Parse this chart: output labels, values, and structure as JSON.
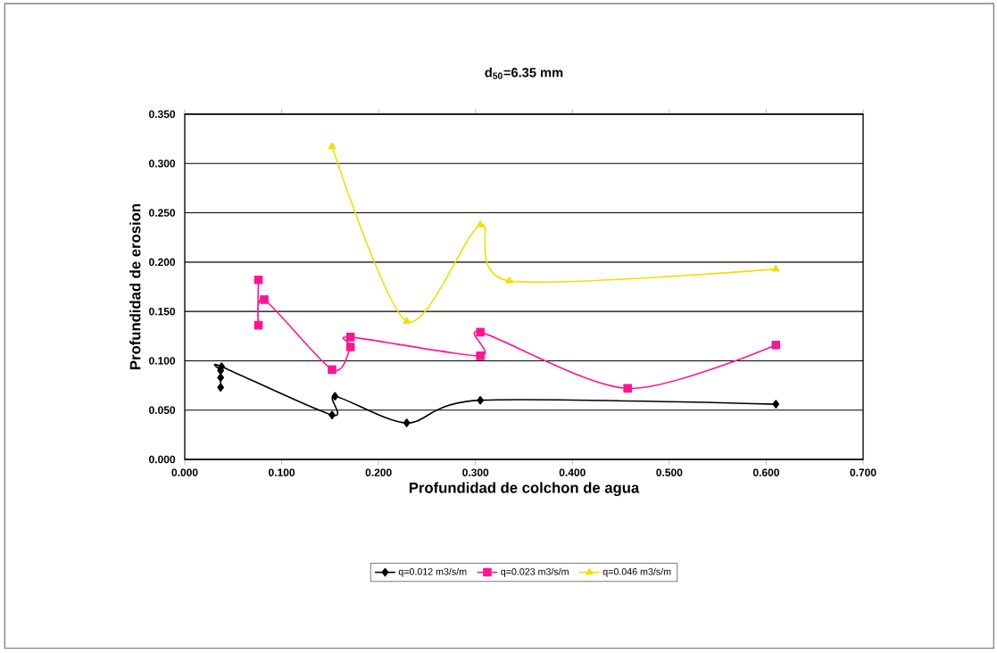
{
  "chart_data": {
    "type": "line",
    "title": "d$_{50}$=6.35 mm",
    "xlabel": "Profundidad de colchon de agua",
    "ylabel": "Profundidad de erosion",
    "xlim": [
      0,
      0.7
    ],
    "ylim": [
      0,
      0.35
    ],
    "xticks": [
      {
        "value": 0,
        "label": "0.000"
      },
      {
        "value": 0.1,
        "label": "0.100"
      },
      {
        "value": 0.2,
        "label": "0.200"
      },
      {
        "value": 0.3,
        "label": "0.300"
      },
      {
        "value": 0.4,
        "label": "0.400"
      },
      {
        "value": 0.5,
        "label": "0.500"
      },
      {
        "value": 0.6,
        "label": "0.600"
      },
      {
        "value": 0.7,
        "label": "0.700"
      }
    ],
    "yticks": [
      {
        "value": 0,
        "label": "0.000"
      },
      {
        "value": 0.05,
        "label": "0.050"
      },
      {
        "value": 0.1,
        "label": "0.100"
      },
      {
        "value": 0.15,
        "label": "0.150"
      },
      {
        "value": 0.2,
        "label": "0.200"
      },
      {
        "value": 0.25,
        "label": "0.250"
      },
      {
        "value": 0.3,
        "label": "0.300"
      },
      {
        "value": 0.35,
        "label": "0.350"
      }
    ],
    "grid": "y",
    "legend": "bottom",
    "series": [
      {
        "name": "q=0.012 m3/s/m",
        "color": "#000000",
        "marker": "diamond",
        "x": [
          0.037,
          0.037,
          0.037,
          0.038,
          0.152,
          0.155,
          0.229,
          0.305,
          0.61
        ],
        "values": [
          0.073,
          0.083,
          0.09,
          0.094,
          0.045,
          0.064,
          0.037,
          0.06,
          0.056
        ]
      },
      {
        "name": "q=0.023 m3/s/m",
        "color": "#ff1493",
        "marker": "square",
        "x": [
          0.076,
          0.076,
          0.082,
          0.152,
          0.171,
          0.171,
          0.305,
          0.305,
          0.457,
          0.61
        ],
        "values": [
          0.182,
          0.136,
          0.162,
          0.091,
          0.114,
          0.124,
          0.105,
          0.129,
          0.072,
          0.116
        ]
      },
      {
        "name": "q=0.046 m3/s/m",
        "color": "#f0e000",
        "marker": "triangle",
        "x": [
          0.152,
          0.229,
          0.305,
          0.335,
          0.61
        ],
        "values": [
          0.317,
          0.14,
          0.238,
          0.181,
          0.193
        ]
      }
    ]
  }
}
